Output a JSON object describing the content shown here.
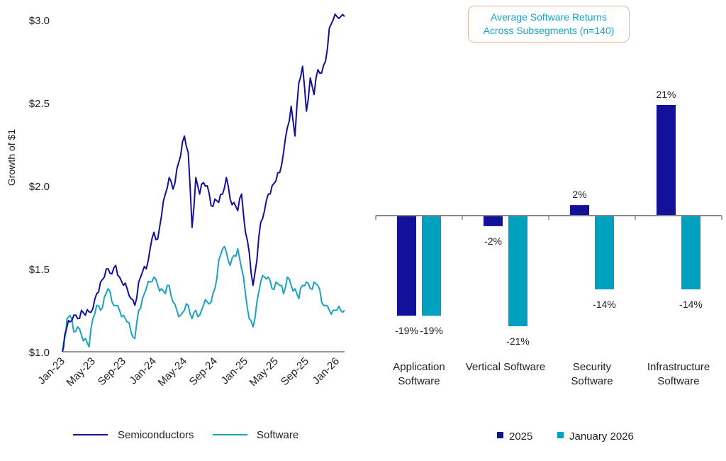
{
  "colors": {
    "semiconductors": "#13109a",
    "software": "#1aa3c0",
    "axis": "#999999",
    "bar_2025": "#13109a",
    "bar_jan2026": "#00a0bf",
    "callout_border": "#e7b796",
    "callout_text": "#1aa3c0"
  },
  "chart_data": [
    {
      "type": "line",
      "title": "",
      "ylabel": "Growth of $1",
      "xlabel": "",
      "ylim": [
        1.0,
        3.0
      ],
      "yticks": [
        1.0,
        1.5,
        2.0,
        2.5,
        3.0
      ],
      "ytick_labels": [
        "$1.0",
        "$1.5",
        "$2.0",
        "$2.5",
        "$3.0"
      ],
      "xtick_labels": [
        "Jan-23",
        "May-23",
        "Sep-23",
        "Jan-24",
        "May-24",
        "Sep-24",
        "Jan-25",
        "May-25",
        "Sep-25",
        "Jan-26"
      ],
      "x_months_range": [
        0,
        37
      ],
      "grid": false,
      "legend_position": "bottom",
      "x": [
        0,
        0.3,
        0.6,
        1,
        1.5,
        2,
        2.5,
        3,
        3.5,
        4,
        4.5,
        5,
        5.5,
        6,
        6.5,
        7,
        7.5,
        8,
        8.5,
        9,
        9.5,
        10,
        10.5,
        11,
        11.5,
        12,
        12.5,
        13,
        13.5,
        14,
        14.5,
        15,
        15.5,
        16,
        16.5,
        17,
        17.5,
        18,
        18.5,
        19,
        19.5,
        20,
        20.5,
        21,
        21.5,
        22,
        22.5,
        23,
        23.5,
        24,
        24.5,
        25,
        25.5,
        26,
        26.5,
        27,
        27.5,
        28,
        28.5,
        29,
        29.5,
        30,
        30.5,
        31,
        31.5,
        32,
        32.5,
        33,
        33.5,
        34,
        34.5,
        35,
        35.5,
        36,
        36.5,
        37
      ],
      "series": [
        {
          "name": "Semiconductors",
          "values": [
            1.0,
            1.1,
            1.15,
            1.18,
            1.22,
            1.2,
            1.25,
            1.22,
            1.24,
            1.26,
            1.35,
            1.42,
            1.45,
            1.5,
            1.47,
            1.52,
            1.45,
            1.4,
            1.38,
            1.32,
            1.28,
            1.42,
            1.48,
            1.5,
            1.62,
            1.72,
            1.68,
            1.82,
            1.95,
            2.05,
            1.98,
            2.1,
            2.18,
            2.3,
            2.2,
            1.75,
            2.05,
            1.95,
            2.02,
            2.0,
            1.88,
            1.92,
            1.9,
            1.95,
            2.05,
            1.92,
            1.9,
            1.85,
            1.95,
            1.72,
            1.6,
            1.4,
            1.55,
            1.78,
            1.85,
            1.95,
            2.0,
            2.03,
            2.08,
            2.2,
            2.35,
            2.48,
            2.3,
            2.62,
            2.72,
            2.45,
            2.65,
            2.55,
            2.7,
            2.68,
            2.75,
            2.95,
            3.0,
            3.02,
            3.02,
            3.02
          ]
        },
        {
          "name": "Software",
          "values": [
            1.0,
            1.08,
            1.2,
            1.22,
            1.12,
            1.15,
            1.1,
            1.08,
            1.03,
            1.2,
            1.28,
            1.25,
            1.33,
            1.38,
            1.3,
            1.28,
            1.25,
            1.22,
            1.18,
            1.12,
            1.08,
            1.25,
            1.32,
            1.38,
            1.42,
            1.45,
            1.4,
            1.38,
            1.35,
            1.4,
            1.3,
            1.25,
            1.22,
            1.25,
            1.28,
            1.2,
            1.25,
            1.22,
            1.28,
            1.3,
            1.3,
            1.38,
            1.55,
            1.62,
            1.6,
            1.52,
            1.58,
            1.62,
            1.5,
            1.35,
            1.2,
            1.15,
            1.3,
            1.42,
            1.45,
            1.45,
            1.38,
            1.42,
            1.4,
            1.35,
            1.45,
            1.4,
            1.38,
            1.32,
            1.4,
            1.42,
            1.38,
            1.42,
            1.4,
            1.3,
            1.28,
            1.25,
            1.25,
            1.25,
            1.25,
            1.25
          ]
        }
      ]
    },
    {
      "type": "bar",
      "title": "Average Software Returns Across Subsegments (n=140)",
      "title_lines": [
        "Average Software Returns",
        "Across Subsegments (n=140)"
      ],
      "categories": [
        {
          "line1": "Application",
          "line2": "Software"
        },
        {
          "line1": "Vertical Software",
          "line2": ""
        },
        {
          "line1": "Security",
          "line2": "Software"
        },
        {
          "line1": "Infrastructure",
          "line2": "Software"
        }
      ],
      "series": [
        {
          "name": "2025",
          "values": [
            -19,
            -2,
            2,
            21
          ],
          "labels": [
            "-19%",
            "-2%",
            "2%",
            "21%"
          ]
        },
        {
          "name": "January 2026",
          "values": [
            -19,
            -21,
            -14,
            -14
          ],
          "labels": [
            "-19%",
            "-21%",
            "-14%",
            "-14%"
          ]
        }
      ],
      "unit": "%",
      "ylim": [
        -23,
        22
      ],
      "grid": false,
      "legend_position": "bottom"
    }
  ]
}
